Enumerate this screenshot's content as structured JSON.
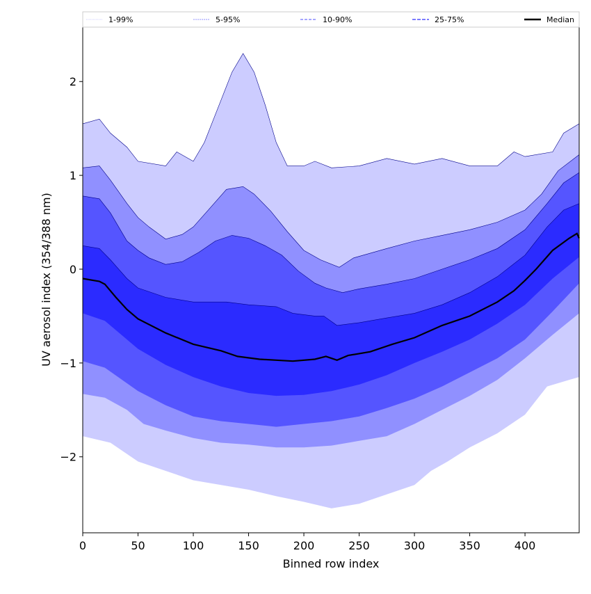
{
  "chart_data": {
    "type": "area",
    "title": "",
    "xlabel": "Binned row index",
    "ylabel": "UV aerosol index (354/388 nm)",
    "xlim": [
      0,
      449
    ],
    "ylim": [
      -2.81,
      2.58
    ],
    "xticks": [
      0,
      50,
      100,
      150,
      200,
      250,
      300,
      350,
      400
    ],
    "yticks": [
      -2,
      -1,
      0,
      1,
      2
    ],
    "ytick_labels": [
      "−2",
      "−1",
      "0",
      "1",
      "2"
    ],
    "legend_position": "top",
    "legend": [
      {
        "label": "1-99%",
        "color": "#ccccff"
      },
      {
        "label": "5-95%",
        "color": "#9090ff"
      },
      {
        "label": "10-90%",
        "color": "#5555ff"
      },
      {
        "label": "25-75%",
        "color": "#2b2bff"
      },
      {
        "label": "Median",
        "color": "#000000"
      }
    ],
    "bands": [
      {
        "name": "1-99%",
        "color": "#ccccff",
        "upper": [
          [
            0,
            1.55
          ],
          [
            15,
            1.6
          ],
          [
            25,
            1.45
          ],
          [
            40,
            1.3
          ],
          [
            50,
            1.15
          ],
          [
            75,
            1.1
          ],
          [
            85,
            1.25
          ],
          [
            100,
            1.15
          ],
          [
            110,
            1.35
          ],
          [
            125,
            1.8
          ],
          [
            135,
            2.1
          ],
          [
            145,
            2.3
          ],
          [
            155,
            2.1
          ],
          [
            165,
            1.75
          ],
          [
            175,
            1.35
          ],
          [
            185,
            1.1
          ],
          [
            200,
            1.1
          ],
          [
            210,
            1.15
          ],
          [
            225,
            1.08
          ],
          [
            250,
            1.1
          ],
          [
            275,
            1.18
          ],
          [
            300,
            1.12
          ],
          [
            325,
            1.18
          ],
          [
            350,
            1.1
          ],
          [
            375,
            1.1
          ],
          [
            390,
            1.25
          ],
          [
            400,
            1.2
          ],
          [
            425,
            1.25
          ],
          [
            435,
            1.45
          ],
          [
            449,
            1.55
          ]
        ],
        "lower": [
          [
            0,
            -1.78
          ],
          [
            25,
            -1.85
          ],
          [
            50,
            -2.05
          ],
          [
            75,
            -2.15
          ],
          [
            100,
            -2.25
          ],
          [
            125,
            -2.3
          ],
          [
            150,
            -2.35
          ],
          [
            175,
            -2.42
          ],
          [
            200,
            -2.48
          ],
          [
            225,
            -2.55
          ],
          [
            250,
            -2.5
          ],
          [
            275,
            -2.4
          ],
          [
            300,
            -2.3
          ],
          [
            315,
            -2.15
          ],
          [
            330,
            -2.05
          ],
          [
            350,
            -1.9
          ],
          [
            375,
            -1.75
          ],
          [
            400,
            -1.55
          ],
          [
            410,
            -1.4
          ],
          [
            420,
            -1.25
          ],
          [
            440,
            -1.18
          ],
          [
            449,
            -1.15
          ]
        ]
      },
      {
        "name": "5-95%",
        "color": "#9090ff",
        "upper": [
          [
            0,
            1.08
          ],
          [
            15,
            1.1
          ],
          [
            25,
            0.95
          ],
          [
            40,
            0.7
          ],
          [
            50,
            0.55
          ],
          [
            60,
            0.45
          ],
          [
            75,
            0.32
          ],
          [
            90,
            0.37
          ],
          [
            100,
            0.45
          ],
          [
            115,
            0.65
          ],
          [
            130,
            0.85
          ],
          [
            145,
            0.88
          ],
          [
            155,
            0.8
          ],
          [
            170,
            0.62
          ],
          [
            185,
            0.4
          ],
          [
            200,
            0.2
          ],
          [
            215,
            0.1
          ],
          [
            232,
            0.02
          ],
          [
            245,
            0.12
          ],
          [
            275,
            0.22
          ],
          [
            300,
            0.3
          ],
          [
            325,
            0.36
          ],
          [
            350,
            0.42
          ],
          [
            375,
            0.5
          ],
          [
            400,
            0.63
          ],
          [
            415,
            0.8
          ],
          [
            430,
            1.05
          ],
          [
            449,
            1.22
          ]
        ],
        "lower": [
          [
            0,
            -1.33
          ],
          [
            20,
            -1.37
          ],
          [
            40,
            -1.5
          ],
          [
            55,
            -1.65
          ],
          [
            75,
            -1.72
          ],
          [
            100,
            -1.8
          ],
          [
            125,
            -1.85
          ],
          [
            150,
            -1.87
          ],
          [
            175,
            -1.9
          ],
          [
            200,
            -1.9
          ],
          [
            225,
            -1.88
          ],
          [
            250,
            -1.83
          ],
          [
            275,
            -1.78
          ],
          [
            300,
            -1.65
          ],
          [
            325,
            -1.5
          ],
          [
            350,
            -1.35
          ],
          [
            375,
            -1.18
          ],
          [
            400,
            -0.95
          ],
          [
            425,
            -0.7
          ],
          [
            449,
            -0.47
          ]
        ]
      },
      {
        "name": "10-90%",
        "color": "#5555ff",
        "upper": [
          [
            0,
            0.78
          ],
          [
            15,
            0.75
          ],
          [
            25,
            0.6
          ],
          [
            40,
            0.3
          ],
          [
            50,
            0.2
          ],
          [
            60,
            0.12
          ],
          [
            75,
            0.05
          ],
          [
            90,
            0.08
          ],
          [
            105,
            0.18
          ],
          [
            120,
            0.3
          ],
          [
            135,
            0.36
          ],
          [
            150,
            0.33
          ],
          [
            165,
            0.25
          ],
          [
            180,
            0.15
          ],
          [
            195,
            -0.02
          ],
          [
            210,
            -0.15
          ],
          [
            220,
            -0.2
          ],
          [
            235,
            -0.25
          ],
          [
            250,
            -0.21
          ],
          [
            275,
            -0.16
          ],
          [
            300,
            -0.1
          ],
          [
            325,
            0.0
          ],
          [
            350,
            0.1
          ],
          [
            375,
            0.22
          ],
          [
            400,
            0.42
          ],
          [
            420,
            0.7
          ],
          [
            435,
            0.92
          ],
          [
            449,
            1.03
          ]
        ],
        "lower": [
          [
            0,
            -0.98
          ],
          [
            20,
            -1.05
          ],
          [
            50,
            -1.3
          ],
          [
            75,
            -1.45
          ],
          [
            100,
            -1.57
          ],
          [
            125,
            -1.62
          ],
          [
            150,
            -1.65
          ],
          [
            175,
            -1.68
          ],
          [
            200,
            -1.65
          ],
          [
            225,
            -1.62
          ],
          [
            250,
            -1.57
          ],
          [
            275,
            -1.48
          ],
          [
            300,
            -1.38
          ],
          [
            325,
            -1.25
          ],
          [
            350,
            -1.1
          ],
          [
            375,
            -0.95
          ],
          [
            400,
            -0.75
          ],
          [
            425,
            -0.45
          ],
          [
            449,
            -0.15
          ]
        ]
      },
      {
        "name": "25-75%",
        "color": "#2b2bff",
        "upper": [
          [
            0,
            0.25
          ],
          [
            15,
            0.22
          ],
          [
            25,
            0.1
          ],
          [
            40,
            -0.1
          ],
          [
            50,
            -0.2
          ],
          [
            75,
            -0.3
          ],
          [
            100,
            -0.35
          ],
          [
            130,
            -0.35
          ],
          [
            150,
            -0.38
          ],
          [
            175,
            -0.4
          ],
          [
            190,
            -0.47
          ],
          [
            210,
            -0.5
          ],
          [
            218,
            -0.5
          ],
          [
            230,
            -0.6
          ],
          [
            250,
            -0.57
          ],
          [
            275,
            -0.52
          ],
          [
            300,
            -0.47
          ],
          [
            325,
            -0.38
          ],
          [
            350,
            -0.25
          ],
          [
            375,
            -0.08
          ],
          [
            400,
            0.15
          ],
          [
            420,
            0.45
          ],
          [
            435,
            0.63
          ],
          [
            449,
            0.7
          ]
        ],
        "lower": [
          [
            0,
            -0.47
          ],
          [
            20,
            -0.55
          ],
          [
            40,
            -0.75
          ],
          [
            50,
            -0.85
          ],
          [
            75,
            -1.02
          ],
          [
            100,
            -1.15
          ],
          [
            125,
            -1.25
          ],
          [
            150,
            -1.32
          ],
          [
            175,
            -1.35
          ],
          [
            200,
            -1.34
          ],
          [
            225,
            -1.3
          ],
          [
            250,
            -1.23
          ],
          [
            275,
            -1.13
          ],
          [
            300,
            -1.0
          ],
          [
            325,
            -0.88
          ],
          [
            350,
            -0.75
          ],
          [
            375,
            -0.58
          ],
          [
            400,
            -0.38
          ],
          [
            425,
            -0.1
          ],
          [
            449,
            0.13
          ]
        ]
      }
    ],
    "median": [
      [
        0,
        -0.1
      ],
      [
        15,
        -0.13
      ],
      [
        20,
        -0.16
      ],
      [
        30,
        -0.3
      ],
      [
        40,
        -0.43
      ],
      [
        50,
        -0.53
      ],
      [
        75,
        -0.68
      ],
      [
        100,
        -0.8
      ],
      [
        125,
        -0.87
      ],
      [
        140,
        -0.93
      ],
      [
        160,
        -0.96
      ],
      [
        175,
        -0.97
      ],
      [
        190,
        -0.98
      ],
      [
        210,
        -0.96
      ],
      [
        220,
        -0.93
      ],
      [
        230,
        -0.97
      ],
      [
        240,
        -0.92
      ],
      [
        260,
        -0.88
      ],
      [
        280,
        -0.8
      ],
      [
        300,
        -0.73
      ],
      [
        325,
        -0.6
      ],
      [
        350,
        -0.5
      ],
      [
        375,
        -0.35
      ],
      [
        390,
        -0.23
      ],
      [
        400,
        -0.12
      ],
      [
        410,
        0.0
      ],
      [
        425,
        0.2
      ],
      [
        440,
        0.33
      ],
      [
        447,
        0.38
      ],
      [
        449,
        0.33
      ]
    ]
  }
}
